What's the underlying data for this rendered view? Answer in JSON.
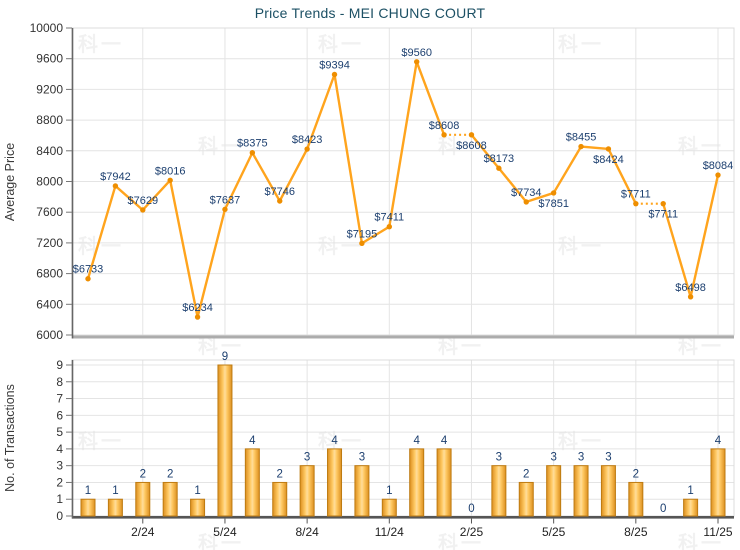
{
  "title": "Price Trends - MEI CHUNG COURT",
  "watermark_text": "科一",
  "colors": {
    "title": "#1C5064",
    "line": "#FFA41D",
    "marker": "#EE8E00",
    "point_label": "#1C3F6F",
    "bar_edge_dark": "#DC8F1F",
    "bar_mid": "#FFC963",
    "bar_light": "#FFDD9B",
    "bar_border": "#BE7B12",
    "axis_text": "#333333",
    "axis_title_text": "#3A3A3A",
    "axis_line": "#666666",
    "baseline": "#555555",
    "grid": "#E4E4E4",
    "plot_border": "#DCDCDC",
    "bottom_axis_bar": "#ACACAC"
  },
  "chart_data": [
    {
      "type": "line",
      "title": "Price Trends - MEI CHUNG COURT",
      "ylabel": "Average Price",
      "ylim": [
        6000,
        10000
      ],
      "ytick_step": 400,
      "yticks": [
        10000,
        9600,
        9200,
        8800,
        8400,
        8000,
        7600,
        7200,
        6800,
        6400,
        6000
      ],
      "n_points": 24,
      "label_prefix": "$",
      "values": [
        6733,
        7942,
        7629,
        8016,
        6234,
        7637,
        8375,
        7746,
        8423,
        9394,
        7195,
        7411,
        9560,
        8608,
        8608,
        8173,
        7734,
        7851,
        8455,
        8424,
        7711,
        7711,
        6498,
        8084
      ],
      "labels_below_indices": [
        14,
        17,
        19,
        21
      ],
      "dashed_segments_from": [
        13,
        20
      ],
      "x_tick_labels": [
        "2/24",
        "5/24",
        "8/24",
        "11/24",
        "2/25",
        "5/25",
        "8/25",
        "11/25"
      ],
      "x_tick_indices": [
        2,
        5,
        8,
        11,
        14,
        17,
        20,
        23
      ],
      "grid": true,
      "legend": "none"
    },
    {
      "type": "bar",
      "ylabel": "No. of Transactions",
      "ylim": [
        0,
        9
      ],
      "yticks": [
        9,
        8,
        7,
        6,
        5,
        4,
        3,
        2,
        1,
        0
      ],
      "n_points": 24,
      "values": [
        1,
        1,
        2,
        2,
        1,
        9,
        4,
        2,
        3,
        4,
        3,
        1,
        4,
        4,
        0,
        3,
        2,
        3,
        3,
        3,
        2,
        0,
        1,
        4
      ],
      "x_tick_labels": [
        "2/24",
        "5/24",
        "8/24",
        "11/24",
        "2/25",
        "5/25",
        "8/25",
        "11/25"
      ],
      "x_tick_indices": [
        2,
        5,
        8,
        11,
        14,
        17,
        20,
        23
      ],
      "grid": true,
      "legend": "none"
    }
  ]
}
